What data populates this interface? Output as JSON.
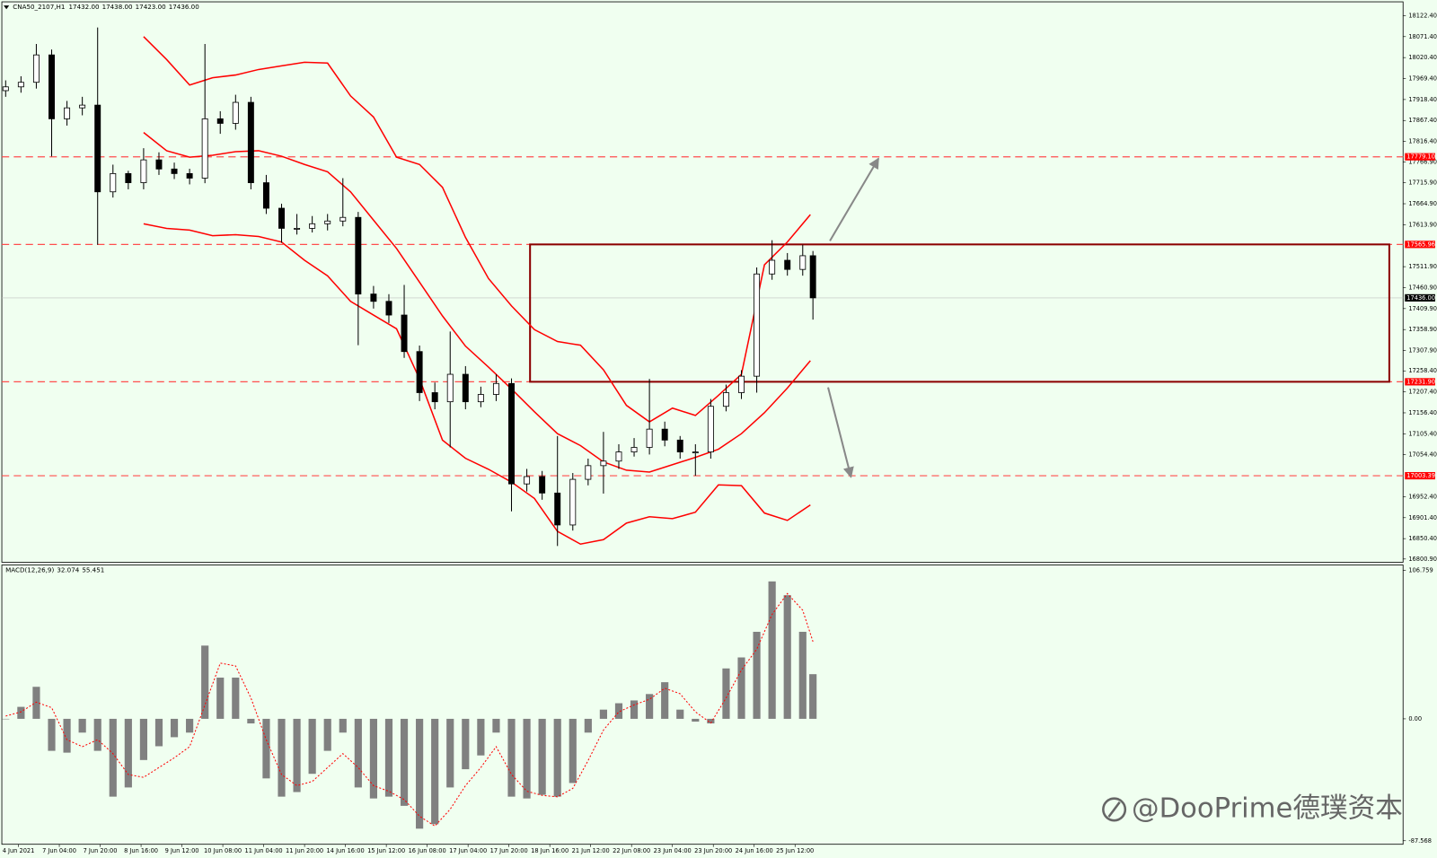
{
  "chart_data": [
    {
      "type": "candlestick",
      "title": "CNA50_2107,H1",
      "quote": [
        "17432.00",
        "17438.00",
        "17423.00",
        "17436.00"
      ],
      "x": [
        0,
        6,
        12,
        18,
        24,
        30,
        36,
        42,
        48,
        54,
        60,
        66,
        72,
        78,
        84,
        90,
        96,
        102,
        108,
        114,
        120,
        126,
        132,
        138,
        144,
        150,
        156,
        162,
        168,
        174,
        180,
        186,
        192,
        198,
        204,
        210,
        216,
        222,
        228,
        234,
        240,
        246,
        252,
        258,
        264,
        270,
        276,
        282,
        288,
        294,
        300,
        306,
        312,
        316
      ],
      "open": [
        17940.0,
        17949.2,
        17960.3,
        18026.9,
        17871.5,
        17898.1,
        17904.8,
        17693.9,
        17738.3,
        17716.1,
        17771.6,
        17749.4,
        17738.3,
        17727.2,
        17871.5,
        17860.4,
        17911.5,
        17716.1,
        17654.0,
        17605.1,
        17605.1,
        17616.2,
        17622.9,
        17631.7,
        17445.3,
        17427.5,
        17394.2,
        17305.4,
        17205.5,
        17183.3,
        17250.1,
        17183.3,
        17201.1,
        17227.7,
        16983.5,
        17001.3,
        16961.3,
        16883.6,
        16994.6,
        17027.9,
        17039.0,
        17061.2,
        17072.3,
        17116.7,
        17090.1,
        17061.2,
        17061.2,
        17172.2,
        17205.5,
        17245.5,
        17494.1,
        17527.4,
        17505.2,
        17538.5
      ],
      "high": [
        17965,
        17975,
        18053.5,
        18040,
        17915,
        17925,
        18093.5,
        17760,
        17745,
        17800,
        17790,
        17765,
        17750,
        18053.5,
        17890,
        17930,
        17925,
        17735,
        17665,
        17640,
        17635,
        17640,
        17727.2,
        17645,
        17465,
        17445,
        17467.5,
        17320,
        17230,
        17354.2,
        17270,
        17220,
        17250,
        17240,
        17020,
        17015,
        17100,
        17010,
        17045,
        17110,
        17080,
        17095,
        17238.8,
        17135,
        17100,
        17080,
        17190,
        17225,
        17260,
        17510,
        17576.2,
        17545,
        17565.1,
        17550
      ],
      "low": [
        17925,
        17935,
        17945,
        17780,
        17855,
        17880,
        17565.1,
        17680,
        17700,
        17700,
        17735,
        17725,
        17712,
        17715,
        17835,
        17845,
        17700,
        17640,
        17570,
        17590,
        17595,
        17600,
        17610,
        17321.0,
        17410,
        17375,
        17290,
        17185,
        17165,
        17072.3,
        17165,
        17170,
        17185,
        16916.9,
        16965,
        16945,
        16832.5,
        16870,
        16980,
        16960,
        17020,
        17050,
        17055,
        17075,
        17045,
        17003.4,
        17045,
        17160,
        17190,
        17205.5,
        17480,
        17490,
        17490,
        17383.1
      ],
      "close": [
        17949.2,
        17960.3,
        18026.9,
        17871.5,
        17898.1,
        17904.8,
        17693.9,
        17738.3,
        17716.1,
        17771.6,
        17749.4,
        17738.3,
        17727.2,
        17871.5,
        17860.4,
        17911.5,
        17716.1,
        17654.0,
        17605.1,
        17605.1,
        17616.2,
        17622.9,
        17631.7,
        17445.3,
        17427.5,
        17394.2,
        17305.4,
        17205.5,
        17183.3,
        17250.1,
        17183.3,
        17201.1,
        17227.7,
        16983.5,
        17001.3,
        16961.3,
        16883.6,
        16994.6,
        17027.9,
        17039.0,
        17061.2,
        17072.3,
        17116.7,
        17090.1,
        17061.2,
        17061.2,
        17172.2,
        17205.5,
        17245.5,
        17494.1,
        17527.4,
        17505.2,
        17538.5,
        17436.0
      ],
      "band_x": [
        54,
        63,
        72,
        81,
        90,
        99,
        108,
        117,
        126,
        135,
        144,
        153,
        162,
        171,
        180,
        189,
        198,
        207,
        216,
        225,
        234,
        243,
        252,
        261,
        270,
        279,
        288,
        297,
        306,
        315
      ],
      "bands": [
        {
          "color": "#ff0000",
          "values": [
            18071.3,
            18015.8,
            17953.6,
            17971.4,
            17978.1,
            17991.4,
            18000.3,
            18009.1,
            18006.9,
            17927.0,
            17875.9,
            17778.3,
            17760.5,
            17705.0,
            17582.9,
            17483.0,
            17416.4,
            17358.7,
            17329.8,
            17320.9,
            17261.0,
            17174.4,
            17134.5,
            17167.8,
            17150.0,
            17198.8,
            17249.9,
            17516.3,
            17571.8,
            17638.4
          ]
        },
        {
          "color": "#ff0000",
          "values": [
            17838.2,
            17793.8,
            17778.3,
            17782.7,
            17791.6,
            17793.8,
            17780.5,
            17760.5,
            17742.7,
            17693.9,
            17625.1,
            17556.3,
            17474.1,
            17392.0,
            17318.7,
            17267.7,
            17214.4,
            17158.9,
            17105.6,
            17076.7,
            17036.8,
            17016.8,
            17012.4,
            17030.1,
            17047.9,
            17067.9,
            17105.6,
            17156.7,
            17216.6,
            17283.2
          ]
        },
        {
          "color": "#ff0000",
          "values": [
            17616.2,
            17605.1,
            17600.7,
            17587.3,
            17589.6,
            17585.1,
            17571.8,
            17527.4,
            17489.7,
            17427.5,
            17394.2,
            17360.9,
            17238.8,
            17090.1,
            17045.7,
            17019.0,
            16987.9,
            16948.0,
            16868.1,
            16837.0,
            16848.1,
            16888.0,
            16903.6,
            16899.1,
            16914.7,
            16981.3,
            16979.1,
            16912.5,
            16894.7,
            16932.4
          ]
        }
      ],
      "levels": [
        {
          "value": 17779.1,
          "label": "17779.10",
          "color": "#ff0000",
          "line_color": "#ff4d4d",
          "dashed": true
        },
        {
          "value": 17565.96,
          "label": "17565.96",
          "color": "#ff0000",
          "line_color": "#ff4d4d",
          "dashed": true
        },
        {
          "value": 17436,
          "label": "17436.00",
          "color": "#000000",
          "line_color": "#c0c0c0",
          "dashed": false
        },
        {
          "value": 17231.9,
          "label": "17231.90",
          "color": "#ff0000",
          "line_color": "#ff4d4d",
          "dashed": true
        },
        {
          "value": 17003.39,
          "label": "17003.39",
          "color": "#ff0000",
          "line_color": "#ff4d4d",
          "dashed": true
        }
      ],
      "box_color": "#8b0000",
      "xlim": [
        -1.5,
        547
      ],
      "xticks": [
        {
          "value": 5,
          "label": "4 Jun 2021"
        },
        {
          "value": 21,
          "label": "7 Jun 04:00"
        },
        {
          "value": 37,
          "label": "7 Jun 20:00"
        },
        {
          "value": 53,
          "label": "8 Jun 16:00"
        },
        {
          "value": 69,
          "label": "9 Jun 12:00"
        },
        {
          "value": 85,
          "label": "10 Jun 08:00"
        },
        {
          "value": 101,
          "label": "11 Jun 04:00"
        },
        {
          "value": 117,
          "label": "11 Jun 20:00"
        },
        {
          "value": 133,
          "label": "14 Jun 16:00"
        },
        {
          "value": 149,
          "label": "15 Jun 12:00"
        },
        {
          "value": 165,
          "label": "16 Jun 08:00"
        },
        {
          "value": 181,
          "label": "17 Jun 04:00"
        },
        {
          "value": 197,
          "label": "17 Jun 20:00"
        },
        {
          "value": 213,
          "label": "18 Jun 16:00"
        },
        {
          "value": 229,
          "label": "21 Jun 12:00"
        },
        {
          "value": 245,
          "label": "22 Jun 08:00"
        },
        {
          "value": 261,
          "label": "23 Jun 04:00"
        },
        {
          "value": 277,
          "label": "23 Jun 20:00"
        },
        {
          "value": 293,
          "label": "24 Jun 16:00"
        },
        {
          "value": 309,
          "label": "25 Jun 12:00"
        }
      ],
      "ylim": [
        16793,
        18156
      ],
      "yticks": [
        {
          "value": 18122.4,
          "label": "18122.40"
        },
        {
          "value": 18071.4,
          "label": "18071.40"
        },
        {
          "value": 18020.4,
          "label": "18020.40"
        },
        {
          "value": 17969.4,
          "label": "17969.40"
        },
        {
          "value": 17918.4,
          "label": "17918.40"
        },
        {
          "value": 17867.4,
          "label": "17867.40"
        },
        {
          "value": 17816.4,
          "label": "17816.40"
        },
        {
          "value": 17766.9,
          "label": "17766.90"
        },
        {
          "value": 17715.9,
          "label": "17715.90"
        },
        {
          "value": 17664.9,
          "label": "17664.90"
        },
        {
          "value": 17613.9,
          "label": "17613.90"
        },
        {
          "value": 17511.9,
          "label": "17511.90"
        },
        {
          "value": 17460.9,
          "label": "17460.90"
        },
        {
          "value": 17409.9,
          "label": "17409.90"
        },
        {
          "value": 17358.9,
          "label": "17358.90"
        },
        {
          "value": 17307.9,
          "label": "17307.90"
        },
        {
          "value": 17258.4,
          "label": "17258.40"
        },
        {
          "value": 17207.4,
          "label": "17207.40"
        },
        {
          "value": 17156.4,
          "label": "17156.40"
        },
        {
          "value": 17105.4,
          "label": "17105.40"
        },
        {
          "value": 17054.4,
          "label": "17054.40"
        },
        {
          "value": 16952.4,
          "label": "16952.40"
        },
        {
          "value": 16901.4,
          "label": "16901.40"
        },
        {
          "value": 16850.4,
          "label": "16850.40"
        },
        {
          "value": 16800.9,
          "label": "16800.90"
        }
      ]
    },
    {
      "type": "macd",
      "title": "MACD(12,26,9)",
      "quote": [
        "32.074",
        "55.451"
      ],
      "series": [
        {
          "color": "#808080",
          "values": [
            0,
            8.6,
            23.0,
            -23.0,
            -24.3,
            -9.9,
            -23.0,
            -55.9,
            -49.3,
            -29.6,
            -19.7,
            -13.2,
            -9.9,
            52.6,
            29.6,
            29.6,
            -3.3,
            -42.8,
            -55.9,
            -52.6,
            -39.5,
            -23.0,
            -9.9,
            -49.3,
            -57.2,
            -55.9,
            -62.5,
            -78.9,
            -75.7,
            -49.3,
            -36.2,
            -26.3,
            -9.9,
            -55.9,
            -57.2,
            -54.6,
            -55.9,
            -46.1,
            -9.9,
            6.6,
            11.2,
            13.2,
            17.8,
            26.3,
            6.6,
            -2.0,
            -3.3,
            36.2,
            44.1,
            62.5,
            98.7,
            88.8,
            62.5,
            32.074
          ]
        },
        {
          "color": "#ff0000",
          "values": [
            2,
            5,
            12,
            8,
            -15,
            -20,
            -15,
            -25,
            -40,
            -42,
            -35,
            -28,
            -20,
            10,
            40,
            38,
            15,
            -15,
            -40,
            -48,
            -45,
            -35,
            -25,
            -35,
            -48,
            -52,
            -58,
            -70,
            -77,
            -65,
            -48,
            -35,
            -20,
            -40,
            -52,
            -55,
            -56,
            -50,
            -30,
            -8,
            5,
            10,
            14,
            22,
            18,
            5,
            -3,
            15,
            35,
            50,
            75,
            90,
            78,
            55.451
          ]
        }
      ],
      "ylim": [
        -90.1,
        110.5
      ],
      "yticks": [
        106.759,
        {
          "value": 0,
          "label": "0.00"
        },
        -87.568
      ]
    }
  ],
  "watermark": "@DooPrime德璞资本"
}
